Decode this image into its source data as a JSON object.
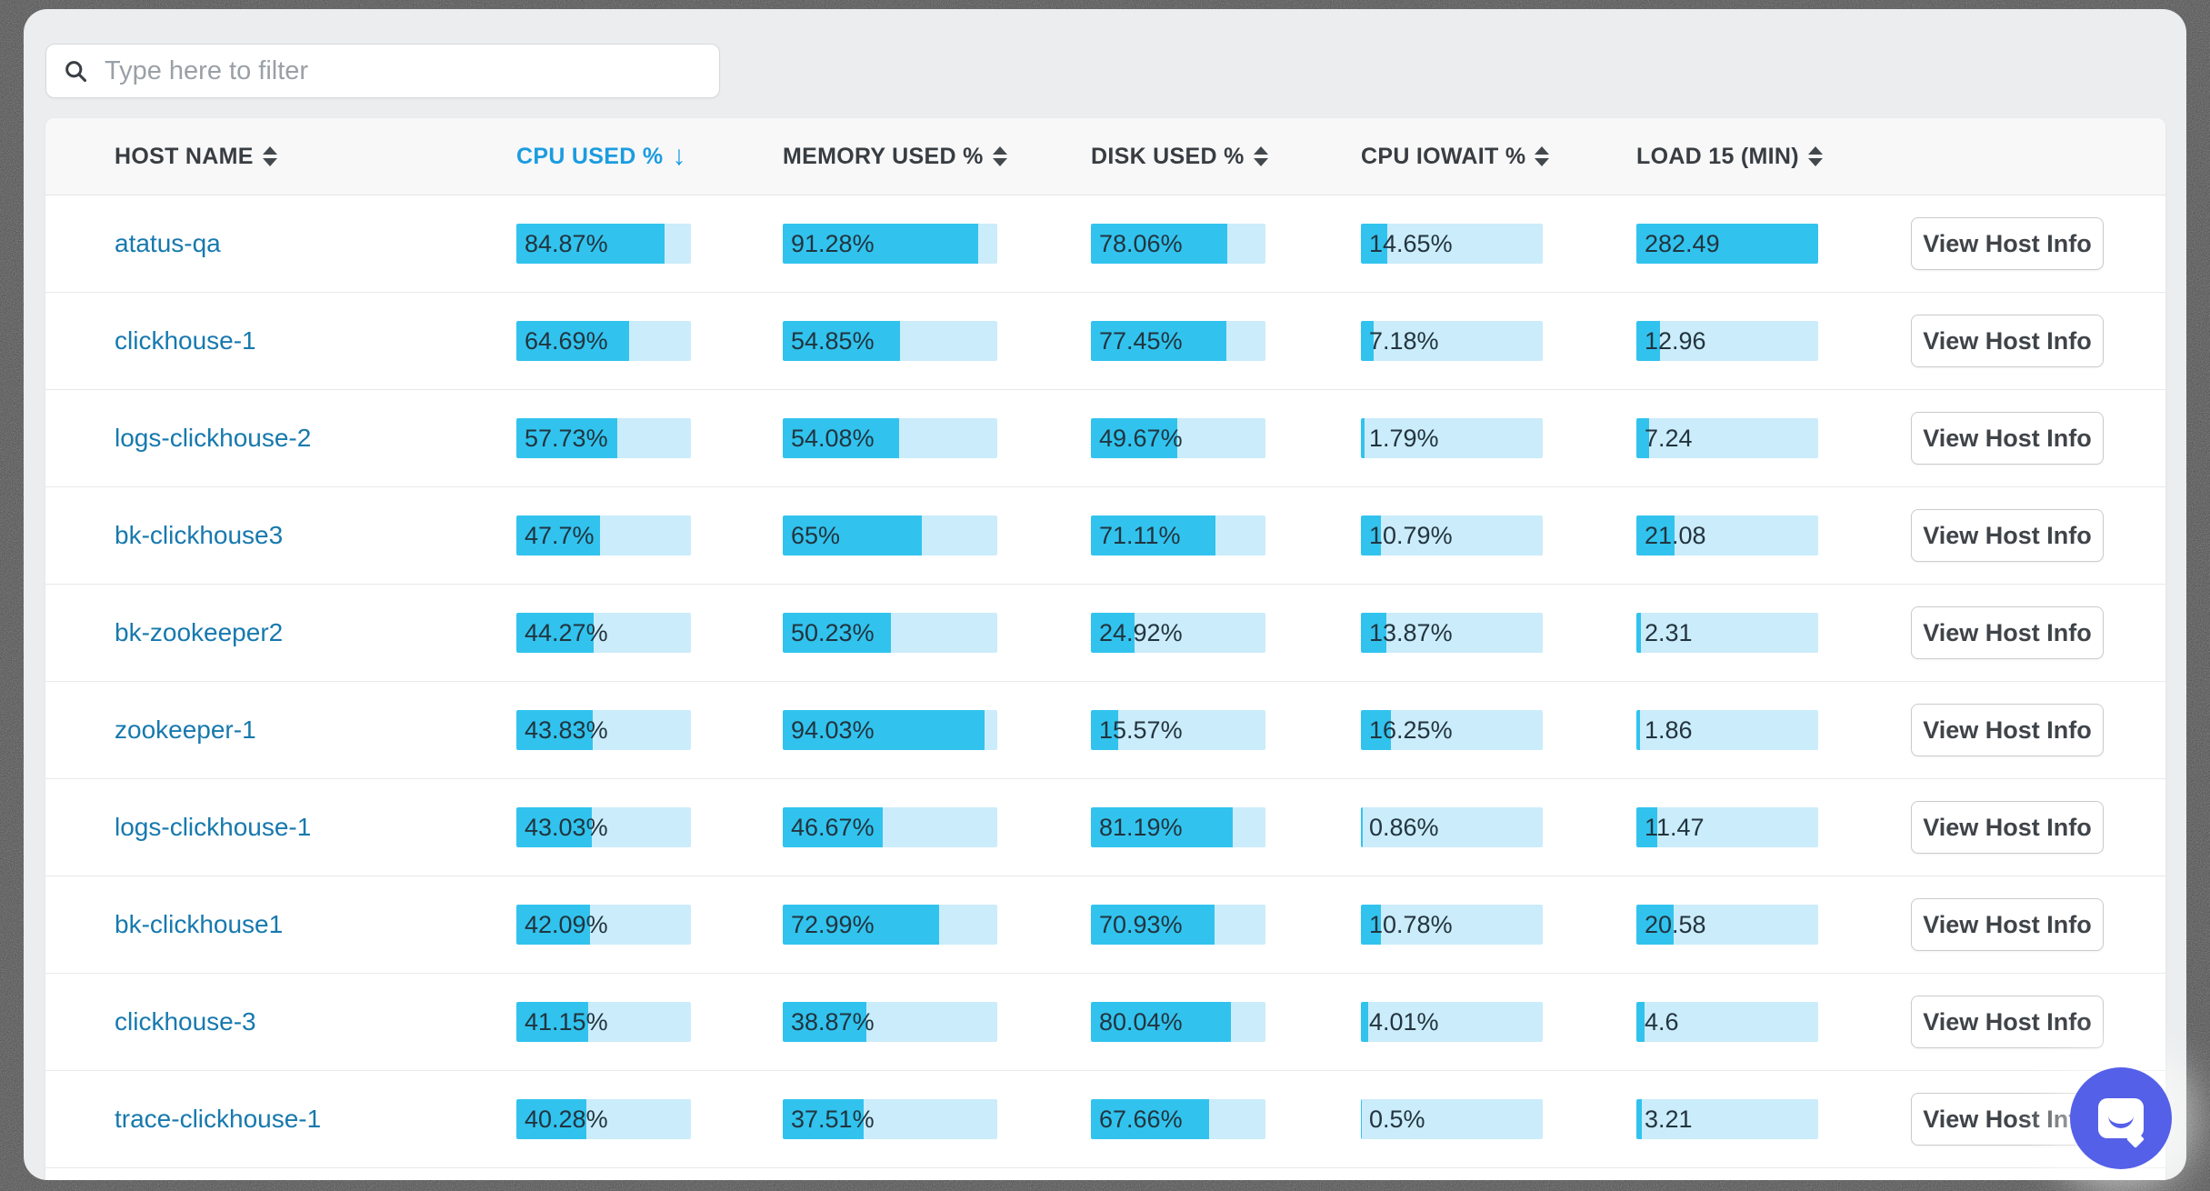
{
  "app": {
    "background_color": "#ecedee",
    "accent_blue": "#1b9ce0",
    "link_color": "#1779ae",
    "bar_fill_color": "#31c3ee",
    "bar_track_color": "#cbecfa",
    "chat_button_color": "#5560e8"
  },
  "filter": {
    "placeholder": "Type here to filter",
    "icon": "search-icon"
  },
  "table": {
    "columns": [
      {
        "key": "host",
        "label": "HOST NAME",
        "sort": "both"
      },
      {
        "key": "cpu",
        "label": "CPU USED %",
        "sort": "desc"
      },
      {
        "key": "mem",
        "label": "MEMORY USED %",
        "sort": "both"
      },
      {
        "key": "disk",
        "label": "DISK USED %",
        "sort": "both"
      },
      {
        "key": "iowait",
        "label": "CPU IOWAIT %",
        "sort": "both"
      },
      {
        "key": "load15",
        "label": "LOAD 15 (MIN)",
        "sort": "both"
      }
    ],
    "action_label": "View Host Info",
    "rows": [
      {
        "host": "atatus-qa",
        "cpu": {
          "label": "84.87%",
          "value": 84.87
        },
        "mem": {
          "label": "91.28%",
          "value": 91.28
        },
        "disk": {
          "label": "78.06%",
          "value": 78.06
        },
        "iowait": {
          "label": "14.65%",
          "value": 14.65
        },
        "load15": {
          "label": "282.49",
          "value": 282.49
        }
      },
      {
        "host": "clickhouse-1",
        "cpu": {
          "label": "64.69%",
          "value": 64.69
        },
        "mem": {
          "label": "54.85%",
          "value": 54.85
        },
        "disk": {
          "label": "77.45%",
          "value": 77.45
        },
        "iowait": {
          "label": "7.18%",
          "value": 7.18
        },
        "load15": {
          "label": "12.96",
          "value": 12.96
        }
      },
      {
        "host": "logs-clickhouse-2",
        "cpu": {
          "label": "57.73%",
          "value": 57.73
        },
        "mem": {
          "label": "54.08%",
          "value": 54.08
        },
        "disk": {
          "label": "49.67%",
          "value": 49.67
        },
        "iowait": {
          "label": "1.79%",
          "value": 1.79
        },
        "load15": {
          "label": "7.24",
          "value": 7.24
        }
      },
      {
        "host": "bk-clickhouse3",
        "cpu": {
          "label": "47.7%",
          "value": 47.7
        },
        "mem": {
          "label": "65%",
          "value": 65
        },
        "disk": {
          "label": "71.11%",
          "value": 71.11
        },
        "iowait": {
          "label": "10.79%",
          "value": 10.79
        },
        "load15": {
          "label": "21.08",
          "value": 21.08
        }
      },
      {
        "host": "bk-zookeeper2",
        "cpu": {
          "label": "44.27%",
          "value": 44.27
        },
        "mem": {
          "label": "50.23%",
          "value": 50.23
        },
        "disk": {
          "label": "24.92%",
          "value": 24.92
        },
        "iowait": {
          "label": "13.87%",
          "value": 13.87
        },
        "load15": {
          "label": "2.31",
          "value": 2.31
        }
      },
      {
        "host": "zookeeper-1",
        "cpu": {
          "label": "43.83%",
          "value": 43.83
        },
        "mem": {
          "label": "94.03%",
          "value": 94.03
        },
        "disk": {
          "label": "15.57%",
          "value": 15.57
        },
        "iowait": {
          "label": "16.25%",
          "value": 16.25
        },
        "load15": {
          "label": "1.86",
          "value": 1.86
        }
      },
      {
        "host": "logs-clickhouse-1",
        "cpu": {
          "label": "43.03%",
          "value": 43.03
        },
        "mem": {
          "label": "46.67%",
          "value": 46.67
        },
        "disk": {
          "label": "81.19%",
          "value": 81.19
        },
        "iowait": {
          "label": "0.86%",
          "value": 0.86
        },
        "load15": {
          "label": "11.47",
          "value": 11.47
        }
      },
      {
        "host": "bk-clickhouse1",
        "cpu": {
          "label": "42.09%",
          "value": 42.09
        },
        "mem": {
          "label": "72.99%",
          "value": 72.99
        },
        "disk": {
          "label": "70.93%",
          "value": 70.93
        },
        "iowait": {
          "label": "10.78%",
          "value": 10.78
        },
        "load15": {
          "label": "20.58",
          "value": 20.58
        }
      },
      {
        "host": "clickhouse-3",
        "cpu": {
          "label": "41.15%",
          "value": 41.15
        },
        "mem": {
          "label": "38.87%",
          "value": 38.87
        },
        "disk": {
          "label": "80.04%",
          "value": 80.04
        },
        "iowait": {
          "label": "4.01%",
          "value": 4.01
        },
        "load15": {
          "label": "4.6",
          "value": 4.6
        }
      },
      {
        "host": "trace-clickhouse-1",
        "cpu": {
          "label": "40.28%",
          "value": 40.28
        },
        "mem": {
          "label": "37.51%",
          "value": 37.51
        },
        "disk": {
          "label": "67.66%",
          "value": 67.66
        },
        "iowait": {
          "label": "0.5%",
          "value": 0.5
        },
        "load15": {
          "label": "3.21",
          "value": 3.21
        }
      }
    ]
  },
  "chat": {
    "icon": "chat-bubble-icon"
  }
}
